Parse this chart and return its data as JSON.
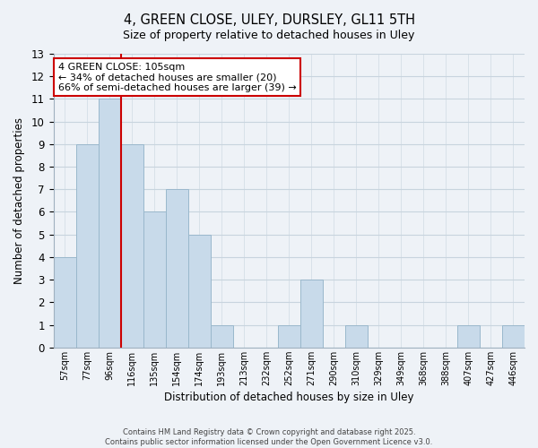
{
  "title": "4, GREEN CLOSE, ULEY, DURSLEY, GL11 5TH",
  "subtitle": "Size of property relative to detached houses in Uley",
  "xlabel": "Distribution of detached houses by size in Uley",
  "ylabel": "Number of detached properties",
  "bar_color": "#c8daea",
  "bar_edge_color": "#9ab8cc",
  "categories": [
    "57sqm",
    "77sqm",
    "96sqm",
    "116sqm",
    "135sqm",
    "154sqm",
    "174sqm",
    "193sqm",
    "213sqm",
    "232sqm",
    "252sqm",
    "271sqm",
    "290sqm",
    "310sqm",
    "329sqm",
    "349sqm",
    "368sqm",
    "388sqm",
    "407sqm",
    "427sqm",
    "446sqm"
  ],
  "values": [
    4,
    9,
    11,
    9,
    6,
    7,
    5,
    1,
    0,
    0,
    1,
    3,
    0,
    1,
    0,
    0,
    0,
    0,
    1,
    0,
    1
  ],
  "ylim": [
    0,
    13
  ],
  "yticks": [
    0,
    1,
    2,
    3,
    4,
    5,
    6,
    7,
    8,
    9,
    10,
    11,
    12,
    13
  ],
  "vline_index": 2,
  "vline_color": "#cc0000",
  "annotation_title": "4 GREEN CLOSE: 105sqm",
  "annotation_line1": "← 34% of detached houses are smaller (20)",
  "annotation_line2": "66% of semi-detached houses are larger (39) →",
  "annotation_box_color": "#ffffff",
  "annotation_box_edge": "#cc0000",
  "grid_color": "#c8d4de",
  "background_color": "#eef2f7",
  "footer1": "Contains HM Land Registry data © Crown copyright and database right 2025.",
  "footer2": "Contains public sector information licensed under the Open Government Licence v3.0."
}
